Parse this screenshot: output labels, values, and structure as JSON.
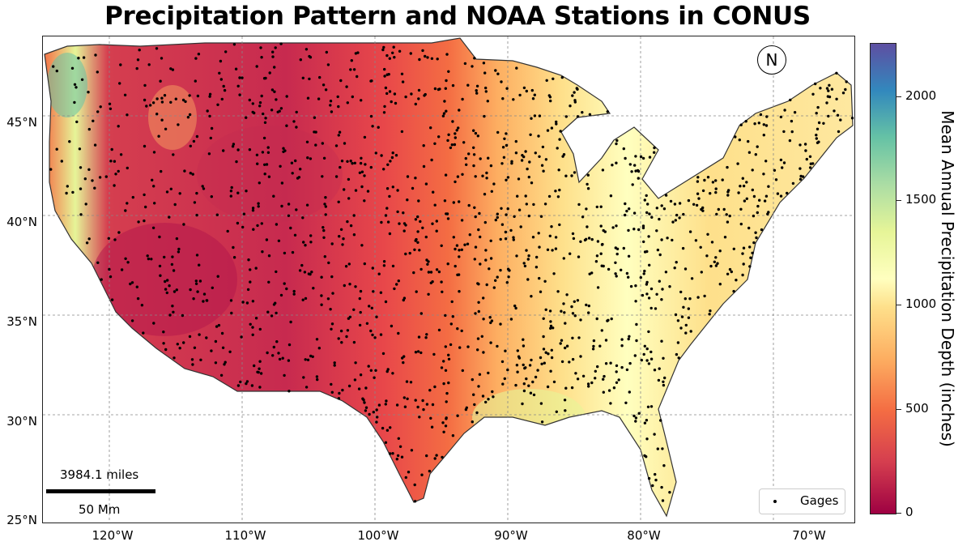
{
  "title": "Precipitation Pattern and NOAA Stations in CONUS",
  "map": {
    "lat_ticks": [
      "45°N",
      "40°N",
      "35°N",
      "30°N",
      "25°N"
    ],
    "lon_ticks": [
      "120°W",
      "110°W",
      "100°W",
      "90°W",
      "80°W",
      "70°W"
    ],
    "north_label": "N",
    "scale_top_label": "3984.1 miles",
    "scale_bottom_label": "50 Mm",
    "legend_label": "Gages",
    "gridlines": true,
    "colormap": "Spectral",
    "station_color": "#000000"
  },
  "colorbar": {
    "title": "Mean Annual Precipitation Depth (inches)",
    "ticks": [
      "2000",
      "1500",
      "1000",
      "500",
      "0"
    ],
    "min": 0,
    "max": 2250,
    "colors": [
      "#9e0142",
      "#d53e4f",
      "#f46d43",
      "#fdae61",
      "#fee08b",
      "#ffffbf",
      "#e6f598",
      "#abdda4",
      "#66c2a5",
      "#3288bd",
      "#5e4fa2"
    ]
  }
}
